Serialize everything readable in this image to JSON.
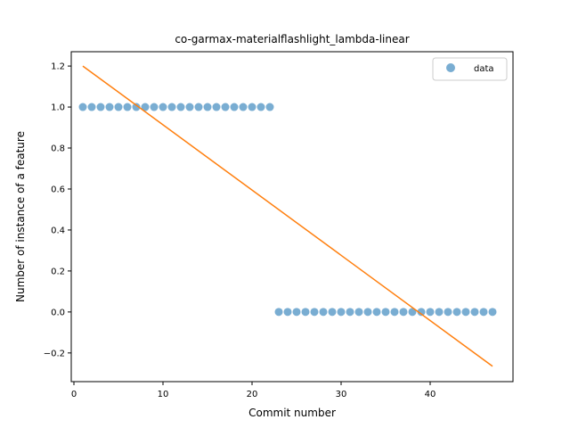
{
  "chart_data": {
    "type": "scatter",
    "title": "co-garmax-materialflashlight_lambda-linear",
    "xlabel": "Commit number",
    "ylabel": "Number of instance of a feature",
    "xlim": [
      -0.3,
      49.3
    ],
    "ylim": [
      -0.34,
      1.27
    ],
    "xticks": [
      0,
      10,
      20,
      30,
      40
    ],
    "yticks": [
      -0.2,
      0.0,
      0.2,
      0.4,
      0.6,
      0.8,
      1.0,
      1.2
    ],
    "xtick_labels": [
      "0",
      "10",
      "20",
      "30",
      "40"
    ],
    "ytick_labels": [
      "−0.2",
      "0.0",
      "0.2",
      "0.4",
      "0.6",
      "0.8",
      "1.0",
      "1.2"
    ],
    "grid": false,
    "legend_position": "top-right",
    "series": [
      {
        "name": "data",
        "kind": "scatter",
        "color": "#1f77b4",
        "x": [
          1,
          2,
          3,
          4,
          5,
          6,
          7,
          8,
          9,
          10,
          11,
          12,
          13,
          14,
          15,
          16,
          17,
          18,
          19,
          20,
          21,
          22,
          23,
          24,
          25,
          26,
          27,
          28,
          29,
          30,
          31,
          32,
          33,
          34,
          35,
          36,
          37,
          38,
          39,
          40,
          41,
          42,
          43,
          44,
          45,
          46,
          47
        ],
        "y": [
          1,
          1,
          1,
          1,
          1,
          1,
          1,
          1,
          1,
          1,
          1,
          1,
          1,
          1,
          1,
          1,
          1,
          1,
          1,
          1,
          1,
          1,
          0,
          0,
          0,
          0,
          0,
          0,
          0,
          0,
          0,
          0,
          0,
          0,
          0,
          0,
          0,
          0,
          0,
          0,
          0,
          0,
          0,
          0,
          0,
          0,
          0
        ]
      },
      {
        "kind": "line",
        "color": "#ff7f0e",
        "x": [
          1,
          47
        ],
        "y": [
          1.2,
          -0.265
        ]
      }
    ]
  }
}
